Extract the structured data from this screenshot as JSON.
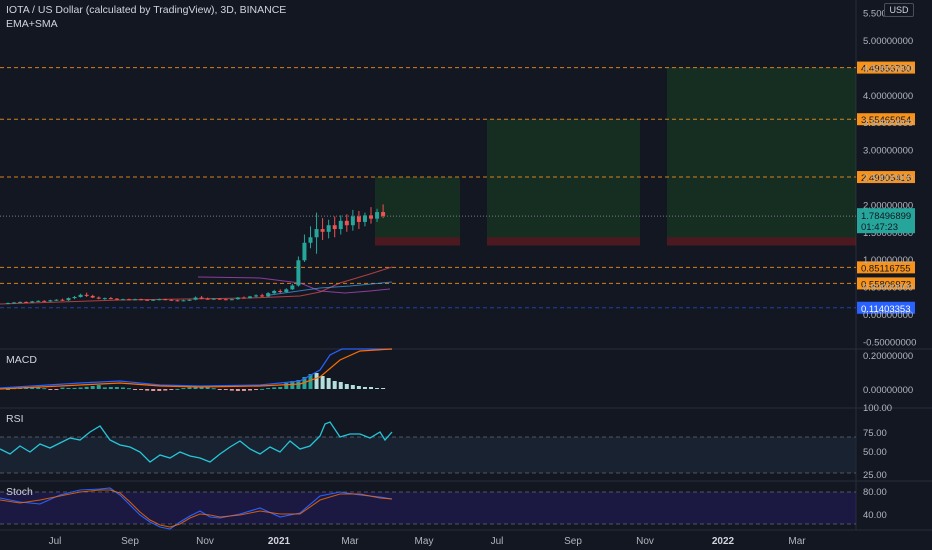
{
  "header": {
    "title": "IOTA / US Dollar (calculated by TradingView), 3D, BINANCE",
    "indicator": "EMA+SMA",
    "currency_button": "USD"
  },
  "price_axis": {
    "ticks": [
      "5.50000000",
      "5.00000000",
      "4.50000000",
      "4.00000000",
      "3.50000000",
      "3.00000000",
      "2.50000000",
      "2.00000000",
      "1.50000000",
      "1.00000000",
      "0.50000000",
      "0.00000000",
      "-0.50000000"
    ],
    "tick_values": [
      5.5,
      5.0,
      4.5,
      4.0,
      3.5,
      3.0,
      2.5,
      2.0,
      1.5,
      1.0,
      0.5,
      0.0,
      -0.5
    ]
  },
  "levels": [
    {
      "label": "4.49656730",
      "value": 4.4965673,
      "color": "#f7931a"
    },
    {
      "label": "3.55465054",
      "value": 3.55465054,
      "color": "#f7931a"
    },
    {
      "label": "2.49905416",
      "value": 2.49905416,
      "color": "#f7931a"
    },
    {
      "label": "0.85116755",
      "value": 0.85116755,
      "color": "#f7931a"
    },
    {
      "label": "0.55806973",
      "value": 0.55806973,
      "color": "#f7931a"
    },
    {
      "label": "0.11403353",
      "value": 0.11403353,
      "color": "#2962ff"
    }
  ],
  "last_price": {
    "value": "1.78496899",
    "countdown": "01:47:23",
    "color": "#26a69a"
  },
  "time_axis": [
    "Jul",
    "Sep",
    "Nov",
    "2021",
    "Mar",
    "May",
    "Jul",
    "Sep",
    "Nov",
    "2022",
    "Mar"
  ],
  "panes": {
    "macd": {
      "label": "MACD",
      "ticks": [
        "0.20000000",
        "0.00000000"
      ]
    },
    "rsi": {
      "label": "RSI",
      "ticks": [
        "100.00",
        "75.00",
        "50.00",
        "25.00"
      ]
    },
    "stoch": {
      "label": "Stoch",
      "ticks": [
        "80.00",
        "40.00"
      ]
    }
  },
  "chart_data": {
    "type": "candlestick",
    "title": "IOTA / US Dollar (calculated by TradingView), 3D, BINANCE",
    "candles": [
      [
        0.19,
        0.21,
        0.18,
        0.2
      ],
      [
        0.2,
        0.22,
        0.19,
        0.21
      ],
      [
        0.21,
        0.23,
        0.2,
        0.22
      ],
      [
        0.22,
        0.23,
        0.2,
        0.21
      ],
      [
        0.21,
        0.24,
        0.2,
        0.23
      ],
      [
        0.23,
        0.25,
        0.22,
        0.24
      ],
      [
        0.24,
        0.25,
        0.22,
        0.23
      ],
      [
        0.23,
        0.26,
        0.22,
        0.25
      ],
      [
        0.25,
        0.27,
        0.24,
        0.26
      ],
      [
        0.26,
        0.28,
        0.24,
        0.25
      ],
      [
        0.25,
        0.3,
        0.24,
        0.29
      ],
      [
        0.29,
        0.33,
        0.27,
        0.31
      ],
      [
        0.31,
        0.37,
        0.3,
        0.35
      ],
      [
        0.35,
        0.39,
        0.31,
        0.33
      ],
      [
        0.33,
        0.35,
        0.29,
        0.3
      ],
      [
        0.3,
        0.32,
        0.27,
        0.28
      ],
      [
        0.28,
        0.3,
        0.26,
        0.29
      ],
      [
        0.29,
        0.31,
        0.27,
        0.28
      ],
      [
        0.28,
        0.29,
        0.25,
        0.26
      ],
      [
        0.26,
        0.28,
        0.25,
        0.27
      ],
      [
        0.27,
        0.28,
        0.25,
        0.26
      ],
      [
        0.26,
        0.28,
        0.25,
        0.27
      ],
      [
        0.27,
        0.28,
        0.25,
        0.26
      ],
      [
        0.26,
        0.27,
        0.24,
        0.25
      ],
      [
        0.25,
        0.27,
        0.24,
        0.26
      ],
      [
        0.26,
        0.28,
        0.25,
        0.27
      ],
      [
        0.27,
        0.28,
        0.25,
        0.26
      ],
      [
        0.26,
        0.27,
        0.24,
        0.25
      ],
      [
        0.25,
        0.26,
        0.23,
        0.24
      ],
      [
        0.24,
        0.26,
        0.23,
        0.25
      ],
      [
        0.25,
        0.27,
        0.24,
        0.26
      ],
      [
        0.26,
        0.32,
        0.25,
        0.3
      ],
      [
        0.3,
        0.33,
        0.27,
        0.28
      ],
      [
        0.28,
        0.3,
        0.26,
        0.27
      ],
      [
        0.27,
        0.29,
        0.26,
        0.28
      ],
      [
        0.28,
        0.29,
        0.26,
        0.27
      ],
      [
        0.27,
        0.28,
        0.25,
        0.26
      ],
      [
        0.26,
        0.28,
        0.25,
        0.27
      ],
      [
        0.27,
        0.31,
        0.26,
        0.3
      ],
      [
        0.3,
        0.32,
        0.28,
        0.29
      ],
      [
        0.29,
        0.33,
        0.28,
        0.32
      ],
      [
        0.32,
        0.36,
        0.3,
        0.34
      ],
      [
        0.34,
        0.37,
        0.31,
        0.32
      ],
      [
        0.32,
        0.4,
        0.31,
        0.38
      ],
      [
        0.38,
        0.44,
        0.36,
        0.42
      ],
      [
        0.42,
        0.45,
        0.38,
        0.4
      ],
      [
        0.4,
        0.47,
        0.39,
        0.45
      ],
      [
        0.45,
        0.55,
        0.44,
        0.52
      ],
      [
        0.52,
        1.05,
        0.5,
        0.98
      ],
      [
        0.98,
        1.45,
        0.95,
        1.3
      ],
      [
        1.3,
        1.6,
        1.2,
        1.4
      ],
      [
        1.4,
        1.85,
        1.1,
        1.55
      ],
      [
        1.55,
        1.75,
        1.35,
        1.5
      ],
      [
        1.5,
        1.72,
        1.38,
        1.62
      ],
      [
        1.62,
        1.78,
        1.4,
        1.55
      ],
      [
        1.55,
        1.8,
        1.45,
        1.7
      ],
      [
        1.7,
        1.82,
        1.5,
        1.62
      ],
      [
        1.62,
        1.9,
        1.52,
        1.78
      ],
      [
        1.78,
        1.88,
        1.55,
        1.68
      ],
      [
        1.68,
        1.85,
        1.6,
        1.8
      ],
      [
        1.8,
        1.95,
        1.65,
        1.74
      ],
      [
        1.74,
        1.92,
        1.68,
        1.86
      ],
      [
        1.86,
        2.0,
        1.75,
        1.79
      ]
    ],
    "long_positions": [
      {
        "entry": 1.4,
        "stop": 1.25,
        "target": 2.49905416
      },
      {
        "entry": 1.4,
        "stop": 1.25,
        "target": 3.55465054
      },
      {
        "entry": 1.4,
        "stop": 1.25,
        "target": 4.4965673
      }
    ],
    "ylim": [
      -0.5,
      5.5
    ]
  }
}
